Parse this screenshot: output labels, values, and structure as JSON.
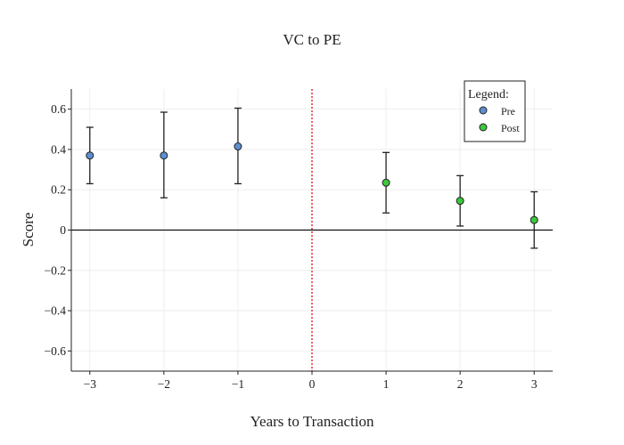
{
  "chart_data": {
    "type": "scatter",
    "title": "VC to PE",
    "xlabel": "Years to Transaction",
    "ylabel": "Score",
    "xlim": [
      -3.25,
      3.25
    ],
    "ylim": [
      -0.7,
      0.7
    ],
    "xticks": [
      {
        "value": -3,
        "label": "−3"
      },
      {
        "value": -2,
        "label": "−2"
      },
      {
        "value": -1,
        "label": "−1"
      },
      {
        "value": 0,
        "label": "0"
      },
      {
        "value": 1,
        "label": "1"
      },
      {
        "value": 2,
        "label": "2"
      },
      {
        "value": 3,
        "label": "3"
      }
    ],
    "yticks": [
      {
        "value": 0.6,
        "label": "0.6"
      },
      {
        "value": 0.4,
        "label": "0.4"
      },
      {
        "value": 0.2,
        "label": "0.2"
      },
      {
        "value": 0,
        "label": "0"
      },
      {
        "value": -0.2,
        "label": "−0.2"
      },
      {
        "value": -0.4,
        "label": "−0.4"
      },
      {
        "value": -0.6,
        "label": "−0.6"
      }
    ],
    "grid": true,
    "zero_line": 0,
    "event_line": {
      "x": 0,
      "color": "#e8322f",
      "style": "dotted"
    },
    "legend": {
      "title": "Legend:",
      "position": "top-right"
    },
    "series": [
      {
        "name": "Pre",
        "color": "#5b8fd0",
        "points": [
          {
            "x": -3,
            "y": 0.37,
            "lower": 0.23,
            "upper": 0.51
          },
          {
            "x": -2,
            "y": 0.37,
            "lower": 0.16,
            "upper": 0.585
          },
          {
            "x": -1,
            "y": 0.415,
            "lower": 0.23,
            "upper": 0.605
          }
        ]
      },
      {
        "name": "Post",
        "color": "#3cc83c",
        "points": [
          {
            "x": 1,
            "y": 0.235,
            "lower": 0.085,
            "upper": 0.385
          },
          {
            "x": 2,
            "y": 0.145,
            "lower": 0.02,
            "upper": 0.27
          },
          {
            "x": 3,
            "y": 0.05,
            "lower": -0.09,
            "upper": 0.19
          }
        ]
      }
    ]
  }
}
